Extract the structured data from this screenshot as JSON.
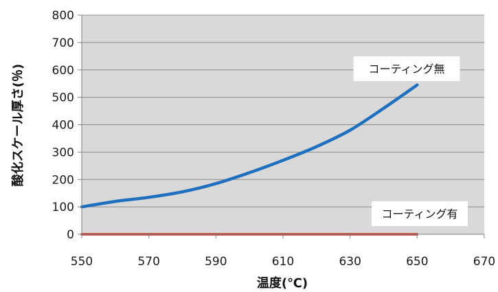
{
  "chart_data": {
    "type": "line",
    "title": "",
    "xlabel": "温度(℃)",
    "ylabel": "酸化スケール厚さ(％)",
    "xlim": [
      550,
      670
    ],
    "ylim": [
      0,
      800
    ],
    "x_ticks": [
      550,
      570,
      590,
      610,
      630,
      650,
      670
    ],
    "y_ticks": [
      0,
      100,
      200,
      300,
      400,
      500,
      600,
      700,
      800
    ],
    "grid": true,
    "legend": "none",
    "plot_background": "#d9d9d9",
    "series": [
      {
        "name": "コーティング無",
        "color": "#1f6fbf",
        "x": [
          550,
          560,
          570,
          580,
          590,
          600,
          610,
          620,
          630,
          640,
          650
        ],
        "y": [
          100,
          120,
          135,
          155,
          185,
          225,
          270,
          320,
          380,
          460,
          545
        ]
      },
      {
        "name": "コーティング有",
        "color": "#c0392b",
        "x": [
          550,
          650
        ],
        "y": [
          0,
          0
        ]
      }
    ]
  }
}
